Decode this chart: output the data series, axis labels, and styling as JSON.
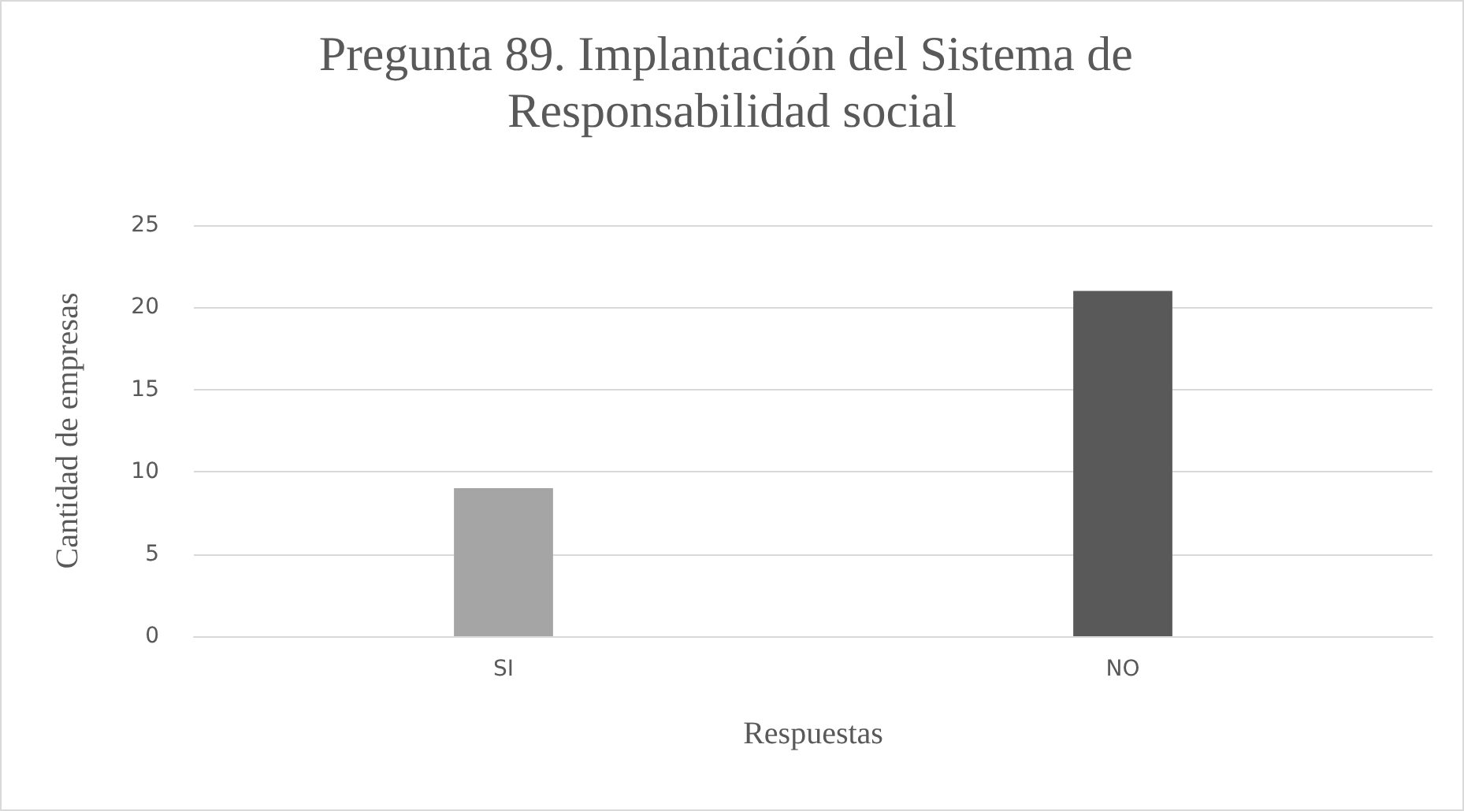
{
  "chart_data": {
    "type": "bar",
    "title": "Pregunta 89. Implantación del Sistema de Responsabilidad social",
    "xlabel": "Respuestas",
    "ylabel": "Cantidad de empresas",
    "categories": [
      "SI",
      "NO"
    ],
    "values": [
      9,
      21
    ],
    "colors": [
      "#a5a5a5",
      "#595959"
    ],
    "ylim": [
      0,
      25
    ],
    "yticks": [
      0,
      5,
      10,
      15,
      20,
      25
    ],
    "grid": "y"
  }
}
